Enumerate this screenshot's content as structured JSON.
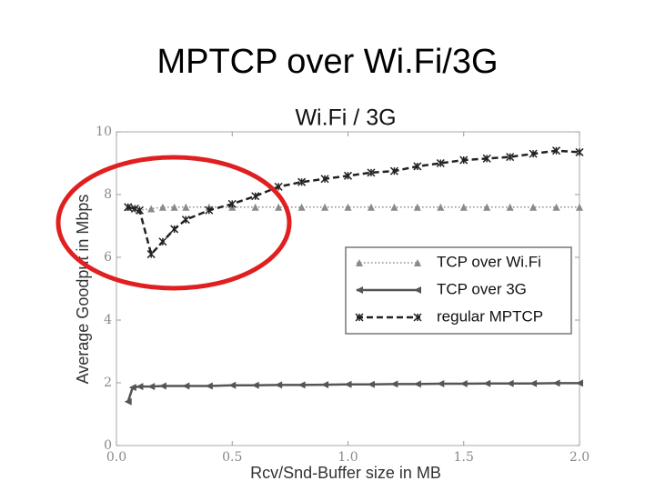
{
  "slide_title": "MPTCP over Wi.Fi/3G",
  "chart_data": {
    "type": "line",
    "title": "Wi.Fi / 3G",
    "xlabel": "Rcv/Snd-Buffer size in MB",
    "ylabel": "Average Goodput in Mbps",
    "xlim": [
      0,
      2
    ],
    "ylim": [
      0,
      10
    ],
    "xticks": [
      {
        "value": 0,
        "label": "0.0"
      },
      0.5,
      {
        "value": 1,
        "label": "1.0"
      },
      1.5,
      {
        "value": 2,
        "label": "2.0"
      }
    ],
    "yticks": [
      0,
      2,
      4,
      6,
      8,
      10
    ],
    "legend": "right",
    "series": [
      {
        "name": "TCP over Wi.Fi",
        "color": "#8a8a8a",
        "linestyle": "dotted",
        "marker": "triangle-up",
        "x": [
          0.05,
          0.1,
          0.15,
          0.2,
          0.25,
          0.3,
          0.4,
          0.5,
          0.6,
          0.7,
          0.8,
          0.9,
          1.0,
          1.1,
          1.2,
          1.3,
          1.4,
          1.5,
          1.6,
          1.7,
          1.8,
          1.9,
          2.0
        ],
        "values": [
          7.6,
          7.5,
          7.55,
          7.6,
          7.6,
          7.6,
          7.6,
          7.6,
          7.6,
          7.6,
          7.6,
          7.6,
          7.6,
          7.6,
          7.6,
          7.6,
          7.6,
          7.6,
          7.6,
          7.6,
          7.6,
          7.6,
          7.6
        ]
      },
      {
        "name": "TCP over 3G",
        "color": "#555555",
        "linestyle": "solid",
        "marker": "triangle-left",
        "x": [
          0.05,
          0.07,
          0.1,
          0.15,
          0.2,
          0.3,
          0.4,
          0.5,
          0.6,
          0.7,
          0.8,
          0.9,
          1.0,
          1.1,
          1.2,
          1.3,
          1.4,
          1.5,
          1.6,
          1.7,
          1.8,
          1.9,
          2.0
        ],
        "values": [
          1.4,
          1.85,
          1.88,
          1.88,
          1.9,
          1.9,
          1.9,
          1.92,
          1.92,
          1.93,
          1.93,
          1.94,
          1.95,
          1.95,
          1.96,
          1.96,
          1.97,
          1.97,
          1.98,
          1.98,
          1.98,
          1.99,
          1.99
        ]
      },
      {
        "name": "regular MPTCP",
        "color": "#222222",
        "linestyle": "dashed",
        "marker": "x",
        "x": [
          0.05,
          0.08,
          0.1,
          0.15,
          0.2,
          0.25,
          0.3,
          0.4,
          0.5,
          0.6,
          0.7,
          0.8,
          0.9,
          1.0,
          1.1,
          1.2,
          1.3,
          1.4,
          1.5,
          1.6,
          1.7,
          1.8,
          1.9,
          2.0
        ],
        "values": [
          7.6,
          7.55,
          7.5,
          6.1,
          6.5,
          6.9,
          7.2,
          7.5,
          7.7,
          7.95,
          8.25,
          8.4,
          8.5,
          8.6,
          8.7,
          8.75,
          8.9,
          9.0,
          9.1,
          9.15,
          9.2,
          9.3,
          9.4,
          9.35
        ]
      }
    ]
  }
}
